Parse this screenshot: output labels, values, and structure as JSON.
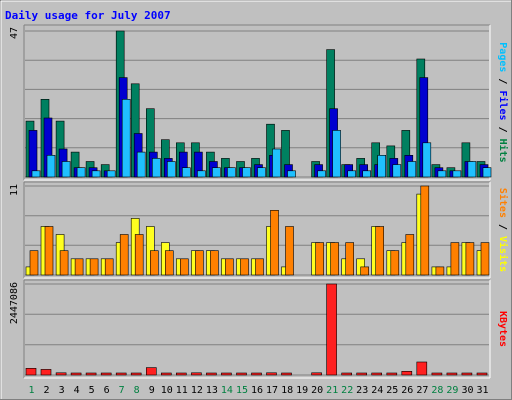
{
  "chart_data": {
    "type": "bar",
    "title": "Daily usage for July 2007",
    "categories": [
      "1",
      "2",
      "3",
      "4",
      "5",
      "6",
      "7",
      "8",
      "9",
      "10",
      "11",
      "12",
      "13",
      "14",
      "15",
      "16",
      "17",
      "18",
      "19",
      "20",
      "21",
      "22",
      "23",
      "24",
      "25",
      "26",
      "27",
      "28",
      "29",
      "30",
      "31"
    ],
    "weekend_days": [
      "1",
      "7",
      "8",
      "14",
      "15",
      "21",
      "22",
      "28",
      "29"
    ],
    "panels": [
      {
        "name": "hits-files-pages",
        "max_label": "47",
        "ylim": [
          0,
          47
        ],
        "ylabel_parts": [
          {
            "text": "Pages",
            "color": "#00c0ff"
          },
          {
            "text": " / ",
            "color": "#000000"
          },
          {
            "text": "Files",
            "color": "#0000ff"
          },
          {
            "text": " / ",
            "color": "#000000"
          },
          {
            "text": "Hits",
            "color": "#008040"
          }
        ],
        "series": [
          {
            "key": "hits",
            "color": "#008060",
            "values": [
              18,
              25,
              18,
              8,
              5,
              4,
              47,
              30,
              22,
              12,
              11,
              11,
              8,
              6,
              5,
              6,
              17,
              15,
              0,
              5,
              41,
              4,
              6,
              11,
              10,
              15,
              38,
              4,
              3,
              11,
              5
            ]
          },
          {
            "key": "files",
            "color": "#0000d0",
            "values": [
              15,
              19,
              9,
              3,
              3,
              2,
              32,
              14,
              8,
              6,
              8,
              8,
              5,
              3,
              3,
              4,
              7,
              4,
              0,
              4,
              22,
              4,
              4,
              4,
              6,
              7,
              32,
              3,
              2,
              5,
              4
            ]
          },
          {
            "key": "pages",
            "color": "#20c0ff",
            "values": [
              2,
              7,
              5,
              3,
              2,
              2,
              25,
              8,
              6,
              5,
              3,
              2,
              3,
              3,
              3,
              3,
              9,
              2,
              0,
              2,
              15,
              2,
              2,
              7,
              4,
              5,
              11,
              2,
              2,
              5,
              3
            ]
          }
        ]
      },
      {
        "name": "visits-sites",
        "max_label": "11",
        "ylim": [
          0,
          11
        ],
        "ylabel_parts": [
          {
            "text": "Sites",
            "color": "#ff8000"
          },
          {
            "text": " / ",
            "color": "#000000"
          },
          {
            "text": "Visits",
            "color": "#ffff00"
          }
        ],
        "series": [
          {
            "key": "visits",
            "color": "#ffff20",
            "values": [
              1,
              6,
              5,
              2,
              2,
              2,
              4,
              7,
              6,
              4,
              2,
              3,
              3,
              2,
              2,
              2,
              6,
              1,
              0,
              4,
              4,
              2,
              2,
              6,
              3,
              4,
              10,
              1,
              1,
              4,
              3
            ]
          },
          {
            "key": "sites",
            "color": "#ff8000",
            "values": [
              3,
              6,
              3,
              2,
              2,
              2,
              5,
              5,
              3,
              3,
              2,
              3,
              3,
              2,
              2,
              2,
              8,
              6,
              0,
              4,
              4,
              4,
              1,
              6,
              3,
              5,
              11,
              1,
              4,
              4,
              4
            ]
          }
        ]
      },
      {
        "name": "kbytes",
        "max_label": "2447086",
        "ylim": [
          0,
          2447086
        ],
        "ylabel_parts": [
          {
            "text": "KBytes",
            "color": "#ff0000"
          }
        ],
        "series": [
          {
            "key": "kbytes",
            "color": "#ff2020",
            "values": [
              180000,
              150000,
              60000,
              20000,
              20000,
              20000,
              20000,
              20000,
              200000,
              20000,
              20000,
              60000,
              20000,
              20000,
              20000,
              20000,
              60000,
              20000,
              0,
              60000,
              2447086,
              20000,
              20000,
              20000,
              20000,
              100000,
              350000,
              20000,
              20000,
              20000,
              20000
            ]
          }
        ]
      }
    ]
  }
}
